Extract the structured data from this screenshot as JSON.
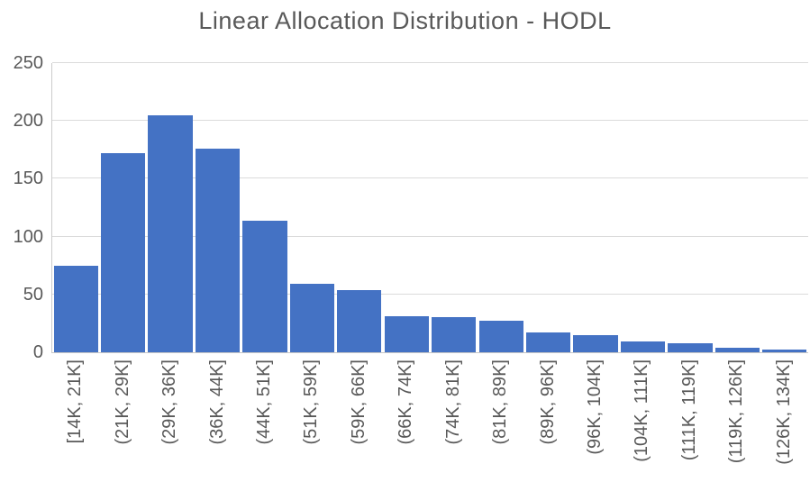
{
  "chart_data": {
    "type": "bar",
    "title": "Linear Allocation Distribution - HODL",
    "categories": [
      "[14K, 21K]",
      "(21K, 29K]",
      "(29K, 36K]",
      "(36K, 44K]",
      "(44K, 51K]",
      "(51K, 59K]",
      "(59K, 66K]",
      "(66K, 74K]",
      "(74K, 81K]",
      "(81K, 89K]",
      "(89K, 96K]",
      "(96K, 104K]",
      "(104K, 111K]",
      "(111K, 119K]",
      "(119K, 126K]",
      "(126K, 134K]"
    ],
    "values": [
      75,
      172,
      205,
      176,
      114,
      59,
      54,
      31,
      30,
      27,
      17,
      15,
      9,
      8,
      4,
      2
    ],
    "xlabel": "",
    "ylabel": "",
    "ylim": [
      0,
      250
    ],
    "yticks": [
      0,
      50,
      100,
      150,
      200,
      250
    ],
    "x_tick_rotation_degrees": 90,
    "grid": "horizontal",
    "legend_position": "none",
    "bar_color": "#4472C4",
    "gridline_color": "#DBDBDB",
    "axis_line_color": "#C6C6C6",
    "text_color": "#595959",
    "background_color": "#FFFFFF"
  }
}
